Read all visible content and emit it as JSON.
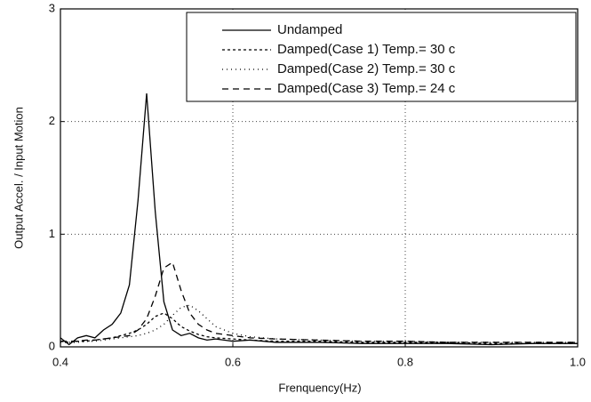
{
  "chart_data": {
    "type": "line",
    "xlabel": "Frenquency(Hz)",
    "ylabel": "Output Accel. / Input Motion",
    "x": [
      0.4,
      0.41,
      0.42,
      0.43,
      0.44,
      0.45,
      0.46,
      0.47,
      0.48,
      0.49,
      0.5,
      0.51,
      0.52,
      0.53,
      0.54,
      0.55,
      0.56,
      0.57,
      0.58,
      0.6,
      0.62,
      0.65,
      0.7,
      0.75,
      0.8,
      0.85,
      0.9,
      0.95,
      1.0
    ],
    "series": [
      {
        "name": "Undamped",
        "color": "#000000",
        "dash": "none",
        "values": [
          0.08,
          0.02,
          0.08,
          0.1,
          0.08,
          0.15,
          0.2,
          0.3,
          0.55,
          1.3,
          2.25,
          1.2,
          0.4,
          0.15,
          0.1,
          0.12,
          0.08,
          0.06,
          0.07,
          0.05,
          0.06,
          0.04,
          0.04,
          0.03,
          0.03,
          0.03,
          0.02,
          0.03,
          0.03
        ]
      },
      {
        "name": "Damped(Case 1) Temp.= 30 c",
        "color": "#000000",
        "dash": "3,3",
        "values": [
          0.05,
          0.04,
          0.05,
          0.05,
          0.06,
          0.07,
          0.08,
          0.1,
          0.12,
          0.15,
          0.2,
          0.27,
          0.3,
          0.25,
          0.18,
          0.14,
          0.11,
          0.09,
          0.08,
          0.07,
          0.06,
          0.05,
          0.05,
          0.04,
          0.04,
          0.04,
          0.03,
          0.03,
          0.03
        ]
      },
      {
        "name": "Damped(Case 2) Temp.= 30 c",
        "color": "#000000",
        "dash": "1,4",
        "values": [
          0.04,
          0.04,
          0.04,
          0.05,
          0.05,
          0.06,
          0.07,
          0.08,
          0.09,
          0.1,
          0.12,
          0.15,
          0.2,
          0.28,
          0.35,
          0.37,
          0.32,
          0.25,
          0.18,
          0.12,
          0.09,
          0.07,
          0.06,
          0.05,
          0.05,
          0.04,
          0.04,
          0.04,
          0.04
        ]
      },
      {
        "name": "Damped(Case 3) Temp.= 24 c",
        "color": "#000000",
        "dash": "7,5",
        "values": [
          0.05,
          0.05,
          0.05,
          0.06,
          0.06,
          0.07,
          0.08,
          0.09,
          0.1,
          0.15,
          0.25,
          0.45,
          0.7,
          0.75,
          0.5,
          0.3,
          0.2,
          0.15,
          0.12,
          0.1,
          0.08,
          0.07,
          0.06,
          0.05,
          0.05,
          0.04,
          0.04,
          0.04,
          0.04
        ]
      }
    ],
    "xlim": [
      0.4,
      1
    ],
    "xticks": [
      0.4,
      0.6,
      0.8,
      {
        "value": 1,
        "label": "1.0"
      }
    ],
    "ylim": [
      0,
      3
    ],
    "yticks": [
      0,
      1,
      2,
      3
    ],
    "grid": true,
    "legend": "upper-right"
  }
}
